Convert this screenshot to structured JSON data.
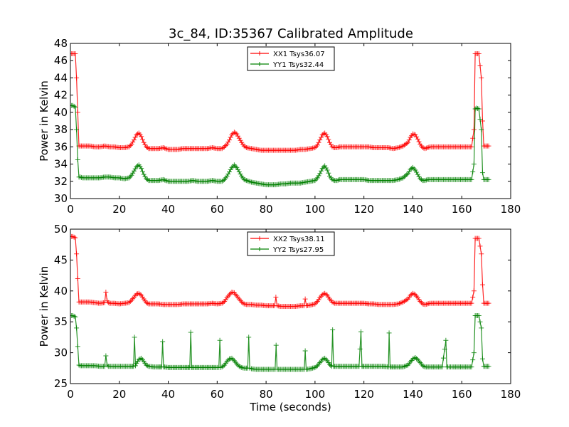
{
  "figure_title": "3c_84, ID:35367 Calibrated Amplitude",
  "chart_data": [
    {
      "type": "line",
      "title": "3c_84, ID:35367 Calibrated Amplitude",
      "xlabel": "",
      "ylabel": "Power in Kelvin",
      "xlim": [
        0,
        180
      ],
      "ylim": [
        30,
        48
      ],
      "xticks": [
        0,
        20,
        40,
        60,
        80,
        100,
        120,
        140,
        160,
        180
      ],
      "yticks": [
        30,
        32,
        34,
        36,
        38,
        40,
        42,
        44,
        46,
        48
      ],
      "grid": false,
      "legend_position": "top-center",
      "series": [
        {
          "name": "XX1 Tsys36.07",
          "color": "#ff0000",
          "x": [
            0,
            1,
            2,
            2.5,
            3,
            3.5,
            4,
            5,
            6,
            8,
            10,
            12,
            14,
            16,
            18,
            20,
            22,
            24,
            25,
            26,
            27,
            28,
            29,
            30,
            31,
            32,
            34,
            36,
            38,
            40,
            42,
            44,
            46,
            48,
            50,
            52,
            54,
            56,
            58,
            60,
            62,
            63,
            64,
            65,
            66,
            67,
            68,
            69,
            70,
            71,
            72,
            74,
            76,
            78,
            80,
            82,
            84,
            86,
            88,
            90,
            92,
            94,
            96,
            98,
            100,
            101,
            102,
            103,
            104,
            105,
            106,
            107,
            108,
            109,
            110,
            112,
            114,
            116,
            118,
            120,
            122,
            124,
            126,
            128,
            130,
            132,
            134,
            136,
            138,
            139,
            140,
            141,
            142,
            143,
            144,
            145,
            146,
            147,
            148,
            150,
            152,
            154,
            156,
            158,
            160,
            162,
            164,
            165,
            165.5,
            166,
            167,
            168,
            168.5,
            169,
            170,
            171
          ],
          "y": [
            46.8,
            46.8,
            46.8,
            44,
            40,
            36.1,
            36.1,
            36.1,
            36.1,
            36.1,
            36.0,
            36.0,
            36.1,
            36.0,
            36.0,
            35.9,
            35.9,
            36.0,
            36.3,
            36.8,
            37.4,
            37.6,
            37.2,
            36.5,
            36.0,
            35.8,
            35.8,
            35.8,
            35.9,
            35.7,
            35.7,
            35.7,
            35.8,
            35.8,
            35.8,
            35.8,
            35.8,
            35.8,
            35.9,
            35.8,
            35.8,
            36.0,
            36.3,
            36.8,
            37.4,
            37.7,
            37.5,
            37.0,
            36.5,
            36.1,
            35.9,
            35.8,
            35.7,
            35.6,
            35.6,
            35.6,
            35.6,
            35.6,
            35.6,
            35.6,
            35.6,
            35.7,
            35.7,
            35.8,
            35.9,
            36.2,
            36.8,
            37.4,
            37.6,
            37.2,
            36.5,
            36.0,
            35.9,
            35.9,
            36.0,
            36.0,
            36.0,
            36.0,
            36.0,
            36.0,
            36.0,
            35.9,
            35.9,
            35.9,
            35.9,
            35.8,
            35.9,
            36.1,
            36.5,
            37.1,
            37.5,
            37.4,
            36.9,
            36.3,
            35.9,
            35.8,
            35.9,
            36.0,
            36.0,
            36.0,
            36.0,
            36.0,
            36.0,
            36.0,
            36.0,
            36.0,
            36.0,
            38,
            46.8,
            46.8,
            46.8,
            44,
            39,
            36.1,
            36.1,
            36.1
          ]
        },
        {
          "name": "YY1 Tsys32.44",
          "color": "#008000",
          "x": [
            0,
            1,
            2,
            2.5,
            3,
            3.5,
            4,
            5,
            6,
            8,
            10,
            12,
            14,
            16,
            18,
            20,
            22,
            24,
            25,
            26,
            27,
            28,
            29,
            30,
            31,
            32,
            34,
            36,
            38,
            40,
            42,
            44,
            46,
            48,
            50,
            52,
            54,
            56,
            58,
            60,
            62,
            63,
            64,
            65,
            66,
            67,
            68,
            69,
            70,
            71,
            72,
            74,
            76,
            78,
            80,
            82,
            84,
            86,
            88,
            90,
            92,
            94,
            96,
            98,
            100,
            101,
            102,
            103,
            104,
            105,
            106,
            107,
            108,
            109,
            110,
            112,
            114,
            116,
            118,
            120,
            122,
            124,
            126,
            128,
            130,
            132,
            134,
            136,
            138,
            139,
            140,
            141,
            142,
            143,
            144,
            145,
            146,
            147,
            148,
            150,
            152,
            154,
            156,
            158,
            160,
            162,
            164,
            165,
            165.5,
            166,
            167,
            168,
            168.5,
            169,
            170,
            171
          ],
          "y": [
            40.8,
            40.8,
            40.6,
            38,
            34.5,
            32.5,
            32.5,
            32.4,
            32.4,
            32.4,
            32.4,
            32.4,
            32.5,
            32.5,
            32.4,
            32.4,
            32.3,
            32.4,
            32.7,
            33.2,
            33.7,
            33.9,
            33.5,
            32.8,
            32.3,
            32.1,
            32.1,
            32.1,
            32.2,
            32.0,
            32.0,
            32.0,
            32.0,
            32.0,
            32.1,
            32.0,
            32.0,
            32.0,
            32.1,
            32.0,
            32.0,
            32.2,
            32.6,
            33.1,
            33.6,
            33.9,
            33.6,
            33.1,
            32.6,
            32.2,
            32.1,
            31.9,
            31.8,
            31.7,
            31.6,
            31.6,
            31.6,
            31.7,
            31.7,
            31.8,
            31.8,
            31.8,
            31.9,
            32.0,
            32.1,
            32.4,
            32.9,
            33.5,
            33.8,
            33.3,
            32.6,
            32.2,
            32.1,
            32.1,
            32.2,
            32.2,
            32.2,
            32.2,
            32.2,
            32.2,
            32.1,
            32.1,
            32.1,
            32.1,
            32.1,
            32.1,
            32.2,
            32.4,
            32.9,
            33.4,
            33.6,
            33.3,
            32.8,
            32.3,
            32.1,
            32.1,
            32.2,
            32.2,
            32.2,
            32.2,
            32.2,
            32.2,
            32.2,
            32.2,
            32.2,
            32.2,
            32.2,
            34,
            40.4,
            40.5,
            40.4,
            38,
            33,
            32.2,
            32.2,
            32.2
          ]
        }
      ]
    },
    {
      "type": "line",
      "title": "",
      "xlabel": "Time (seconds)",
      "ylabel": "Power in Kelvin",
      "xlim": [
        0,
        180
      ],
      "ylim": [
        25,
        50
      ],
      "xticks": [
        0,
        20,
        40,
        60,
        80,
        100,
        120,
        140,
        160,
        180
      ],
      "yticks": [
        25,
        30,
        35,
        40,
        45,
        50
      ],
      "grid": false,
      "legend_position": "top-center",
      "series": [
        {
          "name": "XX2 Tsys38.11",
          "color": "#ff0000",
          "x": [
            0,
            1,
            2,
            2.5,
            3,
            3.5,
            4,
            6,
            8,
            10,
            12,
            14,
            14.5,
            15,
            15.5,
            16,
            18,
            20,
            22,
            24,
            25,
            26,
            27,
            28,
            29,
            30,
            31,
            32,
            34,
            36,
            38,
            40,
            42,
            44,
            46,
            48,
            50,
            52,
            54,
            56,
            58,
            60,
            62,
            63,
            64,
            65,
            66,
            67,
            68,
            69,
            70,
            71,
            72,
            74,
            76,
            78,
            80,
            82,
            83.5,
            84,
            84.5,
            86,
            88,
            90,
            92,
            94,
            95.5,
            96,
            96.5,
            98,
            100,
            101,
            102,
            103,
            104,
            105,
            106,
            107,
            108,
            109,
            110,
            112,
            114,
            116,
            118,
            120,
            122,
            124,
            126,
            128,
            130,
            132,
            134,
            136,
            138,
            139,
            140,
            141,
            142,
            143,
            144,
            145,
            146,
            147,
            148,
            150,
            152,
            154,
            156,
            158,
            160,
            162,
            164,
            165,
            165.5,
            166,
            167,
            168,
            168.5,
            169,
            170,
            171
          ],
          "y": [
            48.8,
            48.8,
            48.6,
            46,
            42,
            38.2,
            38.2,
            38.2,
            38.2,
            38.1,
            38.0,
            38.1,
            39.8,
            38.4,
            38.1,
            38.0,
            38.0,
            37.9,
            38.0,
            38.1,
            38.5,
            39.0,
            39.5,
            39.6,
            39.3,
            38.7,
            38.1,
            37.9,
            37.9,
            37.9,
            37.8,
            37.8,
            37.8,
            37.8,
            37.9,
            37.9,
            37.9,
            37.9,
            37.9,
            37.9,
            38.0,
            37.9,
            38.0,
            38.3,
            38.9,
            39.4,
            39.8,
            39.7,
            39.2,
            38.7,
            38.2,
            37.9,
            37.8,
            37.8,
            37.7,
            37.7,
            37.6,
            37.6,
            37.6,
            39,
            37.6,
            37.5,
            37.5,
            37.5,
            37.5,
            37.6,
            37.6,
            38.7,
            37.6,
            37.7,
            37.9,
            38.3,
            38.9,
            39.4,
            39.6,
            39.3,
            38.7,
            38.2,
            38.0,
            38.0,
            38.0,
            38.0,
            38.0,
            38.0,
            38.0,
            38.0,
            37.9,
            37.9,
            37.8,
            37.8,
            37.8,
            37.8,
            37.9,
            38.2,
            38.7,
            39.3,
            39.6,
            39.4,
            38.9,
            38.3,
            37.9,
            37.8,
            37.9,
            38.0,
            38.0,
            38.0,
            38.0,
            38.0,
            38.0,
            38.0,
            38.0,
            38.0,
            38.0,
            40,
            48.5,
            48.5,
            48.5,
            46,
            41,
            38.0,
            38.0,
            38.0
          ]
        },
        {
          "name": "YY2 Tsys27.95",
          "color": "#008000",
          "x": [
            0,
            1,
            2,
            2.5,
            3,
            3.5,
            4,
            6,
            8,
            10,
            12,
            14,
            14.5,
            15,
            15.5,
            16,
            18,
            20,
            22,
            24,
            25,
            25.8,
            26.2,
            26.6,
            27,
            28,
            29,
            30,
            31,
            32,
            34,
            36,
            37.3,
            37.7,
            38.1,
            38.5,
            40,
            42,
            44,
            46,
            48,
            48.8,
            49.2,
            49.6,
            50,
            52,
            54,
            56,
            58,
            60,
            60.7,
            61.1,
            61.5,
            62,
            63,
            64,
            65,
            66,
            67,
            68,
            69,
            70,
            71,
            72,
            72.5,
            72.9,
            73.3,
            74,
            76,
            78,
            80,
            82,
            83.7,
            84.1,
            84.5,
            86,
            88,
            90,
            92,
            94,
            95.6,
            96,
            96.4,
            98,
            100,
            101,
            102,
            103,
            104,
            105,
            106,
            106.8,
            107.2,
            107.6,
            108,
            109,
            110,
            112,
            114,
            116,
            118,
            118.8,
            119.2,
            119.6,
            120,
            122,
            124,
            126,
            128,
            130,
            130.3,
            130.7,
            131.1,
            132,
            134,
            136,
            138,
            139,
            140,
            141,
            142,
            143,
            144,
            145,
            146,
            147,
            148,
            150,
            152,
            153.5,
            153.9,
            154.3,
            156,
            158,
            160,
            162,
            164,
            165,
            165.5,
            166,
            167,
            168,
            168.5,
            169,
            170,
            171
          ],
          "y": [
            36.0,
            36.0,
            35.8,
            34,
            31,
            28.0,
            27.9,
            27.9,
            27.9,
            27.9,
            27.8,
            27.8,
            29.5,
            28.0,
            27.8,
            27.8,
            27.8,
            27.8,
            27.8,
            27.8,
            27.8,
            27.8,
            32.5,
            27.9,
            28.3,
            28.9,
            29.1,
            28.6,
            28.0,
            27.8,
            27.7,
            27.7,
            27.7,
            31.8,
            27.7,
            27.7,
            27.6,
            27.6,
            27.6,
            27.6,
            27.6,
            27.6,
            33.3,
            27.6,
            27.6,
            27.6,
            27.6,
            27.6,
            27.6,
            27.6,
            27.6,
            32.0,
            27.6,
            27.7,
            28.0,
            28.6,
            29.0,
            29.1,
            28.7,
            28.2,
            27.8,
            27.6,
            27.5,
            27.5,
            27.5,
            32.5,
            27.5,
            27.4,
            27.3,
            27.3,
            27.3,
            27.3,
            27.3,
            31.2,
            27.3,
            27.3,
            27.3,
            27.3,
            27.3,
            27.3,
            27.3,
            30.3,
            27.3,
            27.4,
            27.6,
            27.9,
            28.4,
            28.9,
            29.1,
            28.7,
            28.1,
            27.8,
            33.7,
            27.8,
            27.8,
            27.8,
            27.8,
            27.8,
            27.8,
            27.8,
            27.8,
            33.4,
            27.8,
            27.8,
            27.8,
            27.8,
            27.8,
            27.8,
            27.8,
            27.7,
            33.2,
            27.7,
            27.7,
            27.7,
            27.7,
            27.7,
            28.0,
            28.5,
            29.0,
            29.2,
            28.9,
            28.4,
            27.9,
            27.7,
            27.7,
            27.7,
            27.7,
            27.7,
            27.7,
            32.0,
            27.7,
            27.7,
            27.7,
            27.7,
            27.7,
            27.7,
            27.7,
            30,
            36.0,
            36.0,
            36.0,
            34,
            29,
            27.8,
            27.8,
            27.8
          ]
        }
      ]
    }
  ]
}
